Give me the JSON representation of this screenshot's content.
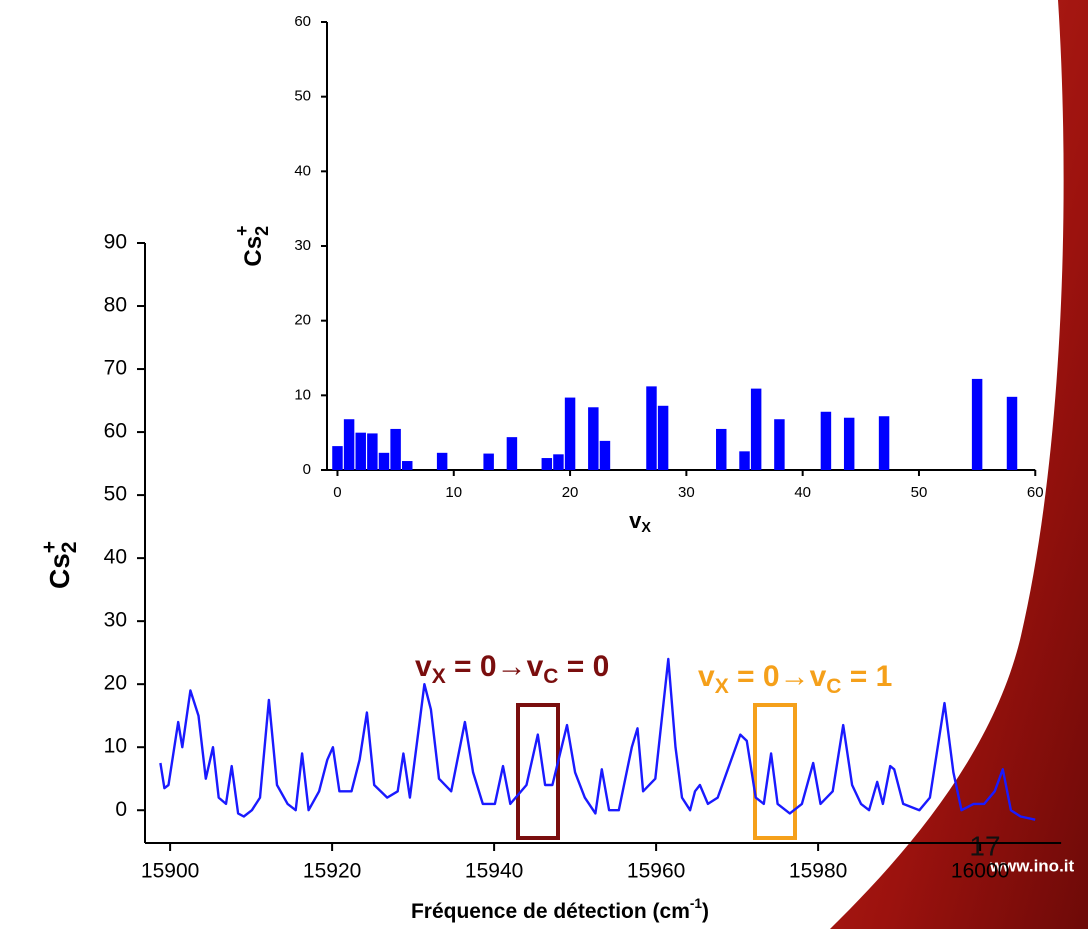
{
  "chart_data": [
    {
      "type": "line",
      "color": "#1a1aff",
      "x_label": [
        "Fréquence de détection (cm",
        "-1",
        ")"
      ],
      "y_label": [
        "Cs",
        "2",
        "+"
      ],
      "xlim": [
        15896.9,
        16010
      ],
      "xticks": [
        15900,
        15920,
        15940,
        15960,
        15980,
        16000
      ],
      "ylim": [
        -5.2,
        90
      ],
      "yticks": [
        0,
        10,
        20,
        30,
        40,
        50,
        60,
        70,
        80,
        90
      ],
      "x": [
        15898.8,
        15899.3,
        15899.8,
        15901,
        15901.5,
        15902.5,
        15903.5,
        15904.4,
        15905.3,
        15906,
        15906.9,
        15907.6,
        15908.4,
        15909.1,
        15910.1,
        15911.1,
        15912.2,
        15913.2,
        15914.5,
        15915.5,
        15916.3,
        15917.1,
        15918.4,
        15919.4,
        15920.1,
        15920.9,
        15922.4,
        15923.4,
        15924.3,
        15925.2,
        15926.8,
        15928.1,
        15928.8,
        15929.6,
        15930.7,
        15931.4,
        15932.2,
        15933.2,
        15934.7,
        15936.4,
        15937.4,
        15938.6,
        15940.1,
        15941.1,
        15942,
        15944,
        15945.4,
        15946.3,
        15947.2,
        15949,
        15950,
        15951.2,
        15952.5,
        15953.3,
        15954.2,
        15955.4,
        15957,
        15957.7,
        15958.4,
        15959.9,
        15961.5,
        15962.4,
        15963.2,
        15964.2,
        15964.8,
        15965.4,
        15966.4,
        15967.6,
        15970.4,
        15971.2,
        15972.3,
        15973.3,
        15974.2,
        15975,
        15976.5,
        15978,
        15979.4,
        15980.3,
        15981.8,
        15983.1,
        15984.2,
        15985.3,
        15986.3,
        15987.3,
        15988,
        15988.9,
        15989.4,
        15990.5,
        15992.5,
        15993.8,
        15995.6,
        15996.7,
        15997.7,
        15999.2,
        16000.5,
        16001.8,
        16002.8,
        16003.8,
        16005,
        16006.8
      ],
      "values": [
        7.5,
        3.5,
        4,
        14,
        10,
        19,
        15,
        5,
        10,
        2,
        1,
        7,
        -0.5,
        -1,
        0,
        2,
        17.5,
        4,
        1,
        0,
        9,
        0,
        3,
        8,
        10,
        3,
        3,
        8,
        15.5,
        4,
        2,
        3,
        9,
        2,
        13,
        20,
        16,
        5,
        3,
        14,
        6,
        1,
        1,
        7,
        1,
        4,
        12,
        4,
        4,
        13.5,
        6,
        2,
        -0.5,
        6.5,
        0,
        0,
        10,
        13,
        3,
        5,
        24,
        10,
        2,
        0,
        3,
        4,
        1,
        2,
        12,
        11,
        2,
        1,
        9,
        1,
        -0.5,
        1,
        7.5,
        1,
        3,
        13.5,
        4,
        1,
        0,
        4.5,
        1,
        7,
        6.5,
        1,
        0,
        2,
        17,
        6,
        0,
        1,
        1,
        3,
        6.5,
        0,
        -1,
        -1.5
      ],
      "annotations": [
        {
          "text": [
            "v",
            "X",
            " = 0→v",
            "C",
            " = 0"
          ],
          "color": "#7a0e0e"
        },
        {
          "text": [
            "v",
            "X",
            " = 0→v",
            "C",
            " = 1"
          ],
          "color": "#f5a01a"
        }
      ]
    },
    {
      "type": "bar",
      "color": "#0000ff",
      "x_label": [
        "v",
        "X"
      ],
      "y_label": [
        "Cs",
        "2",
        "+"
      ],
      "xlim": [
        -0.9,
        60
      ],
      "xticks": [
        0,
        10,
        20,
        30,
        40,
        50,
        60
      ],
      "ylim": [
        0,
        60
      ],
      "yticks": [
        0,
        10,
        20,
        30,
        40,
        50,
        60
      ],
      "x": [
        0,
        1,
        2,
        3,
        4,
        5,
        6,
        9,
        13,
        15,
        18,
        19,
        20,
        22,
        23,
        27,
        28,
        33,
        35,
        36,
        38,
        42,
        44,
        47,
        55,
        58
      ],
      "values": [
        3.2,
        6.8,
        5,
        4.9,
        2.3,
        5.5,
        1.2,
        2.3,
        2.2,
        4.4,
        1.6,
        2.1,
        9.7,
        8.4,
        3.9,
        11.2,
        8.6,
        5.5,
        2.5,
        10.9,
        6.8,
        7.8,
        7,
        7.2,
        12.2,
        9.8
      ]
    }
  ],
  "slide_number": "17",
  "website": "www.ino.it"
}
